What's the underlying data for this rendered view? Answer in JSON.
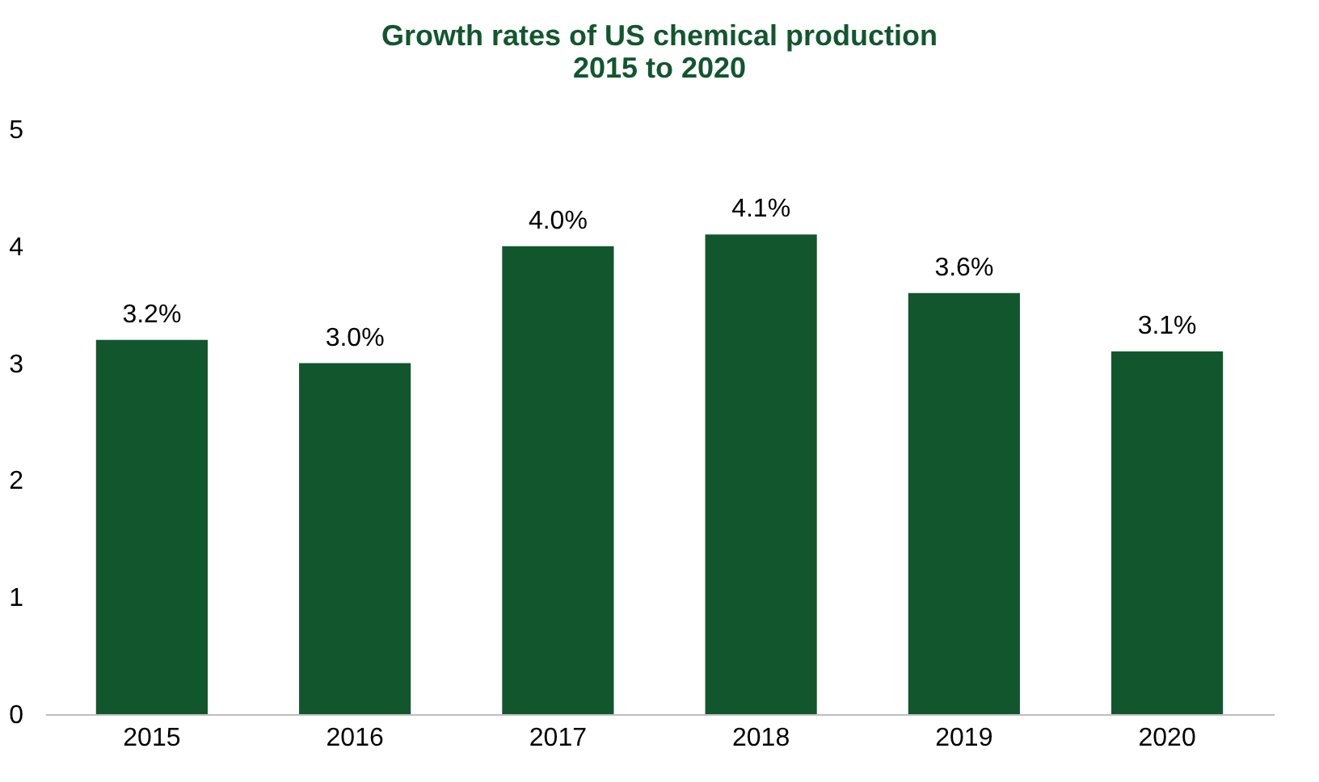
{
  "chart_data": {
    "type": "bar",
    "title": "Growth rates of US chemical production\n2015 to 2020",
    "categories": [
      "2015",
      "2016",
      "2017",
      "2018",
      "2019",
      "2020"
    ],
    "values": [
      3.2,
      3.0,
      4.0,
      4.1,
      3.6,
      3.1
    ],
    "value_labels": [
      "3.2%",
      "3.0%",
      "4.0%",
      "4.1%",
      "3.6%",
      "3.1%"
    ],
    "color": "#12562e",
    "ylim": [
      0,
      5
    ],
    "yticks": [
      0,
      1,
      2,
      3,
      4,
      5
    ],
    "grid": false
  }
}
